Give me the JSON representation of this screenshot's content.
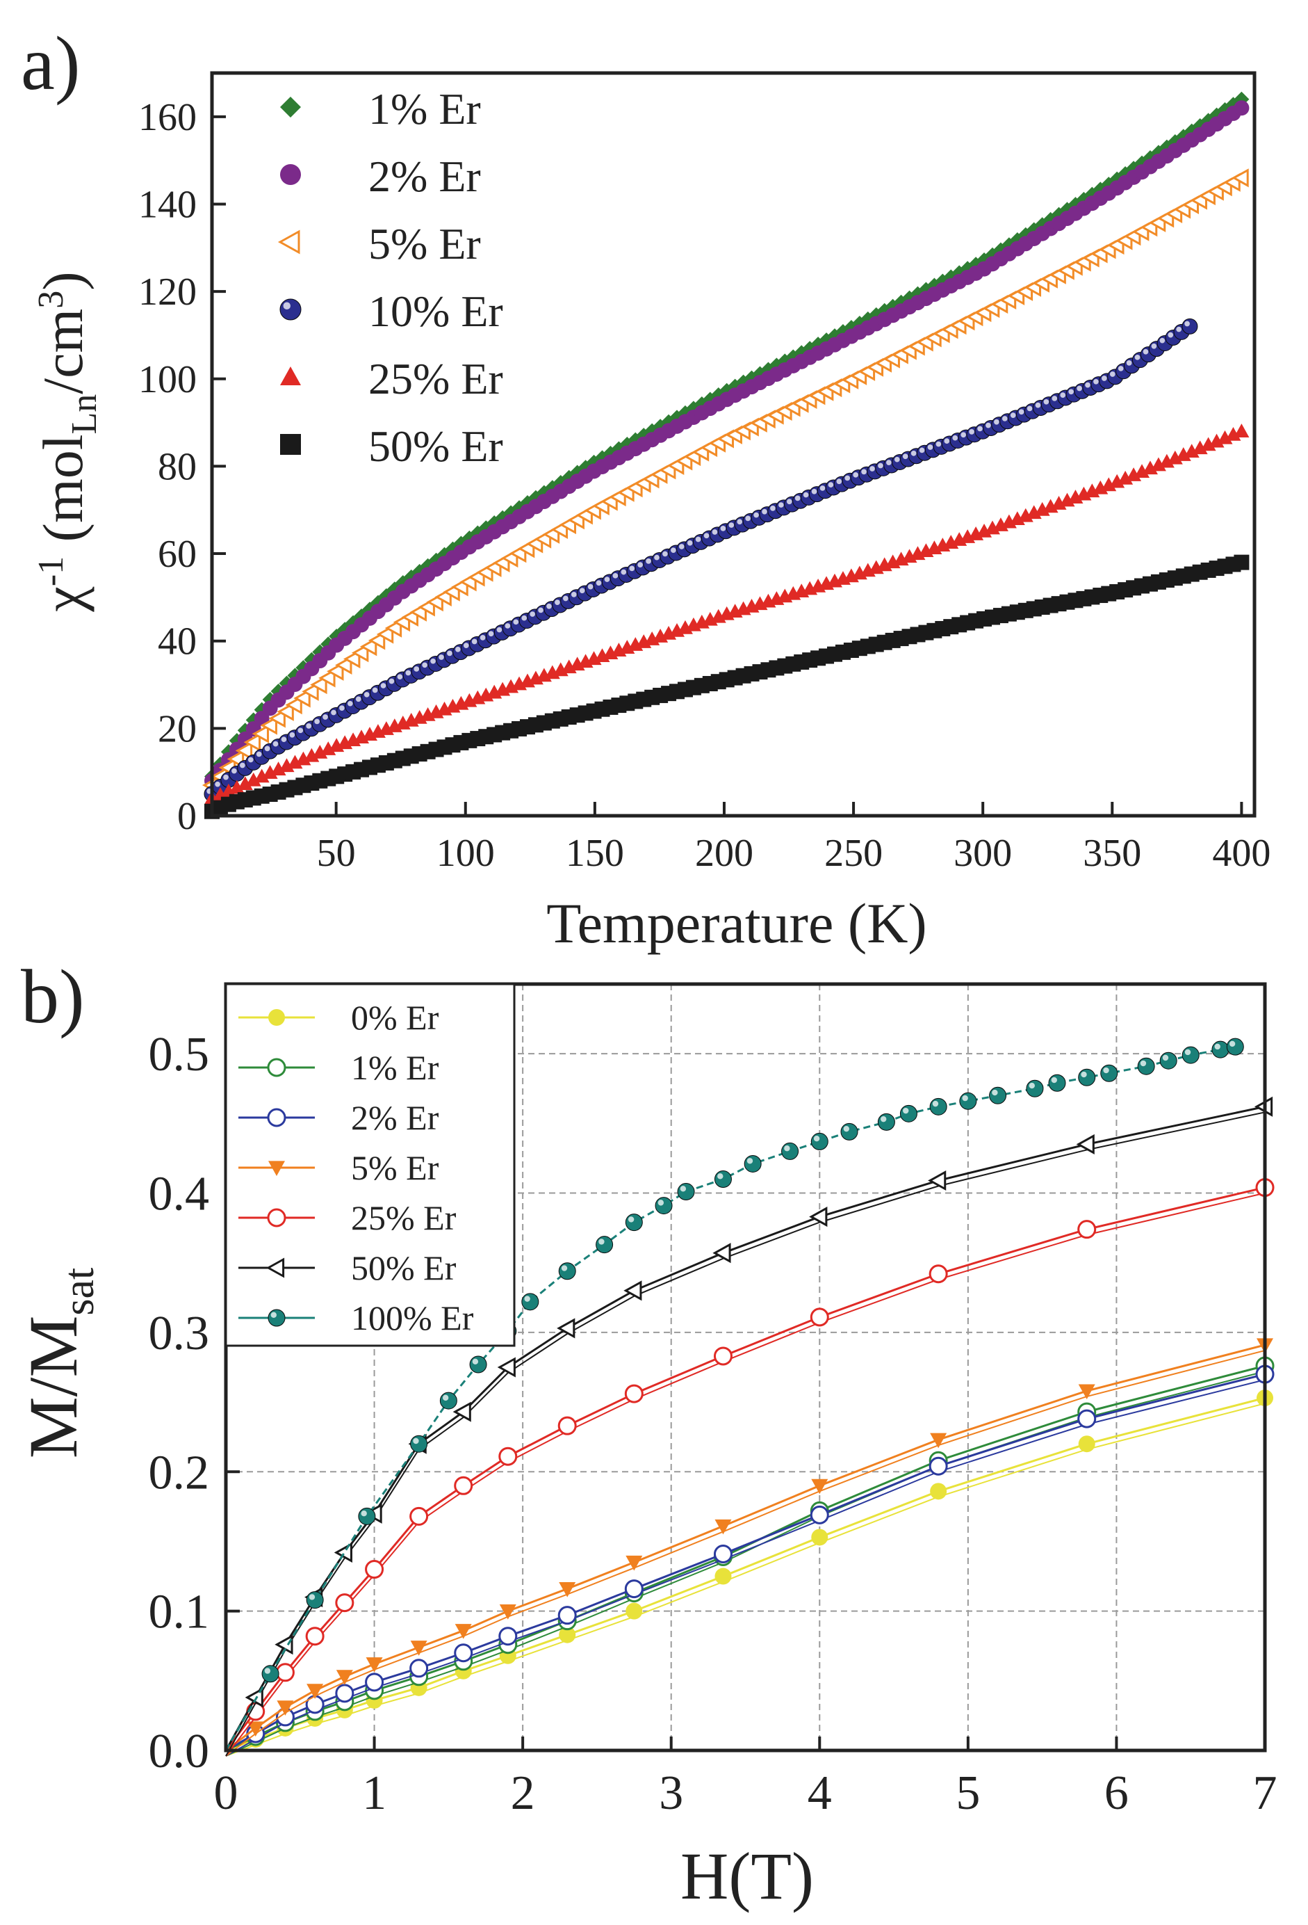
{
  "chart_data": [
    {
      "panel_label": "a)",
      "type": "scatter",
      "xlabel": "Temperature (K)",
      "ylabel": {
        "base": "χ",
        "sup1": "-1",
        "open": " (mol",
        "sub": "Ln",
        "mid": "/cm",
        "sup2": "3",
        "close": ")"
      },
      "xlim": [
        2,
        405
      ],
      "ylim": [
        0,
        170
      ],
      "xticks": [
        50,
        100,
        150,
        200,
        250,
        300,
        350,
        400
      ],
      "yticks": [
        0,
        20,
        40,
        60,
        80,
        100,
        120,
        140,
        160
      ],
      "legend_position": "top-left",
      "series": [
        {
          "name": "1%   Er",
          "color": "#2e7d32",
          "marker": "diamond",
          "x": [
            2,
            10,
            25,
            50,
            75,
            100,
            150,
            200,
            250,
            300,
            350,
            400
          ],
          "y": [
            9,
            16,
            27,
            41,
            53,
            63,
            81,
            97,
            112,
            127,
            145,
            164
          ]
        },
        {
          "name": "2%   Er",
          "color": "#7b2a8a",
          "marker": "circle",
          "x": [
            2,
            10,
            25,
            50,
            75,
            100,
            150,
            200,
            250,
            300,
            350,
            400
          ],
          "y": [
            8,
            14,
            25,
            39,
            51,
            61,
            79,
            95,
            110,
            125,
            143,
            162
          ]
        },
        {
          "name": "5%   Er",
          "color": "#f28c28",
          "marker": "triangle-left-open",
          "x": [
            2,
            10,
            25,
            50,
            75,
            100,
            150,
            200,
            250,
            300,
            350,
            400
          ],
          "y": [
            7,
            12,
            21,
            33,
            44,
            53,
            70,
            86,
            100,
            115,
            130,
            146
          ]
        },
        {
          "name": "10% Er",
          "color": "#2b2f8f",
          "marker": "sphere",
          "x": [
            2,
            10,
            25,
            50,
            75,
            100,
            150,
            200,
            250,
            300,
            350,
            380
          ],
          "y": [
            5,
            9,
            15,
            23,
            31,
            38,
            52,
            65,
            77,
            88,
            100,
            112
          ]
        },
        {
          "name": "25% Er",
          "color": "#e02a25",
          "marker": "triangle",
          "x": [
            2,
            10,
            25,
            50,
            75,
            100,
            150,
            200,
            250,
            300,
            350,
            400
          ],
          "y": [
            4,
            6,
            10,
            16,
            21,
            26,
            36,
            46,
            55,
            65,
            76,
            88
          ]
        },
        {
          "name": "50% Er",
          "color": "#1a1a1a",
          "marker": "square",
          "x": [
            2,
            10,
            25,
            50,
            75,
            100,
            150,
            200,
            250,
            300,
            350,
            400
          ],
          "y": [
            1,
            3,
            5,
            9,
            13,
            17,
            24,
            31,
            38,
            45,
            51,
            58
          ]
        }
      ]
    },
    {
      "panel_label": "b)",
      "type": "line",
      "xlabel": "H(T)",
      "ylabel": {
        "base": "M/M",
        "sub": "sat"
      },
      "xlim": [
        0,
        7
      ],
      "ylim": [
        0,
        0.55
      ],
      "xticks": [
        0,
        1,
        2,
        3,
        4,
        5,
        6,
        7
      ],
      "yticks": [
        0.0,
        0.1,
        0.2,
        0.3,
        0.4,
        0.5
      ],
      "grid": true,
      "legend_position": "top-left",
      "series": [
        {
          "name": "0% Er",
          "color": "#e8e23a",
          "marker": "circle-filled",
          "x": [
            0,
            0.2,
            0.4,
            0.6,
            0.8,
            1.0,
            1.3,
            1.6,
            1.9,
            2.3,
            2.75,
            3.35,
            4.0,
            4.8,
            5.8,
            7.0
          ],
          "y": [
            0,
            0.008,
            0.016,
            0.023,
            0.029,
            0.036,
            0.045,
            0.057,
            0.068,
            0.083,
            0.1,
            0.125,
            0.153,
            0.186,
            0.22,
            0.253
          ]
        },
        {
          "name": "1% Er",
          "color": "#2e8b3a",
          "marker": "circle-open",
          "x": [
            0,
            0.2,
            0.4,
            0.6,
            0.8,
            1.0,
            1.3,
            1.6,
            1.9,
            2.3,
            2.75,
            3.35,
            4.0,
            4.8,
            5.8,
            7.0
          ],
          "y": [
            0,
            0.01,
            0.02,
            0.028,
            0.035,
            0.043,
            0.053,
            0.064,
            0.076,
            0.093,
            0.113,
            0.139,
            0.172,
            0.208,
            0.243,
            0.276
          ]
        },
        {
          "name": "2% Er",
          "color": "#2b3a9e",
          "marker": "circle-open",
          "x": [
            0,
            0.2,
            0.4,
            0.6,
            0.8,
            1.0,
            1.3,
            1.6,
            1.9,
            2.3,
            2.75,
            3.35,
            4.0,
            4.8,
            5.8,
            7.0
          ],
          "y": [
            0,
            0.012,
            0.024,
            0.033,
            0.041,
            0.049,
            0.059,
            0.07,
            0.082,
            0.097,
            0.116,
            0.141,
            0.169,
            0.204,
            0.238,
            0.27
          ]
        },
        {
          "name": "5% Er",
          "color": "#f0801f",
          "marker": "triangle-down-filled",
          "x": [
            0,
            0.2,
            0.4,
            0.6,
            0.8,
            1.0,
            1.3,
            1.6,
            1.9,
            2.3,
            2.75,
            3.35,
            4.0,
            4.8,
            5.8,
            7.0
          ],
          "y": [
            0,
            0.016,
            0.031,
            0.043,
            0.053,
            0.062,
            0.074,
            0.086,
            0.1,
            0.116,
            0.135,
            0.161,
            0.19,
            0.223,
            0.258,
            0.291
          ]
        },
        {
          "name": "25% Er",
          "color": "#e02a25",
          "marker": "circle-open",
          "x": [
            0,
            0.2,
            0.4,
            0.6,
            0.8,
            1.0,
            1.3,
            1.6,
            1.9,
            2.3,
            2.75,
            3.35,
            4.0,
            4.8,
            5.8,
            7.0
          ],
          "y": [
            0,
            0.028,
            0.056,
            0.082,
            0.106,
            0.13,
            0.168,
            0.19,
            0.211,
            0.233,
            0.256,
            0.283,
            0.311,
            0.342,
            0.374,
            0.404
          ]
        },
        {
          "name": "50% Er",
          "color": "#1a1a1a",
          "marker": "triangle-left-open",
          "x": [
            0,
            0.2,
            0.4,
            0.6,
            0.8,
            1.0,
            1.3,
            1.6,
            1.9,
            2.3,
            2.75,
            3.35,
            4.0,
            4.8,
            5.8,
            7.0
          ],
          "y": [
            0,
            0.038,
            0.076,
            0.11,
            0.142,
            0.17,
            0.22,
            0.243,
            0.275,
            0.303,
            0.33,
            0.357,
            0.383,
            0.409,
            0.435,
            0.462
          ]
        },
        {
          "name": "100% Er",
          "color": "#1a8078",
          "marker": "sphere",
          "x": [
            0,
            0.3,
            0.6,
            0.95,
            1.3,
            1.5,
            1.7,
            1.9,
            2.05,
            2.3,
            2.55,
            2.75,
            2.95,
            3.1,
            3.35,
            3.55,
            3.8,
            4.0,
            4.2,
            4.45,
            4.6,
            4.8,
            5.0,
            5.2,
            5.45,
            5.6,
            5.8,
            5.95,
            6.2,
            6.35,
            6.5,
            6.7,
            6.8
          ],
          "y": [
            0,
            0.055,
            0.108,
            0.168,
            0.22,
            0.251,
            0.277,
            0.301,
            0.322,
            0.344,
            0.363,
            0.379,
            0.391,
            0.401,
            0.41,
            0.421,
            0.43,
            0.437,
            0.444,
            0.451,
            0.457,
            0.462,
            0.466,
            0.47,
            0.475,
            0.479,
            0.483,
            0.486,
            0.491,
            0.495,
            0.499,
            0.503,
            0.505
          ]
        }
      ]
    }
  ]
}
